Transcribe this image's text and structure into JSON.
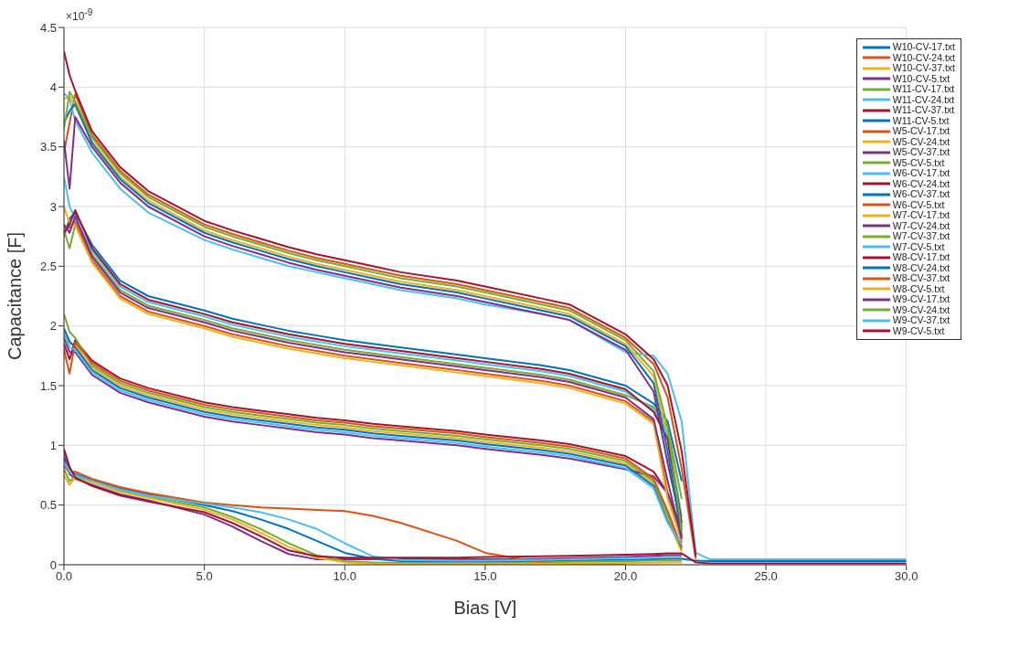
{
  "chart_data": {
    "type": "line",
    "xlabel": "Bias [V]",
    "ylabel": "Capacitance [F]",
    "annotations": [
      "×10$^{-9}$"
    ],
    "x": [
      0,
      0.2,
      0.4,
      1,
      2,
      3,
      5,
      6,
      7,
      8,
      9,
      10,
      11,
      12,
      14,
      15,
      17,
      18,
      20,
      21,
      21.5,
      22,
      22.5,
      23,
      30
    ],
    "xlim": [
      0,
      30
    ],
    "xticks": [
      {
        "value": 0,
        "label": "0.0"
      },
      {
        "value": 5,
        "label": "5.0"
      },
      {
        "value": 10,
        "label": "10.0"
      },
      {
        "value": 15,
        "label": "15.0"
      },
      {
        "value": 20,
        "label": "20.0"
      },
      {
        "value": 25,
        "label": "25.0"
      },
      {
        "value": 30,
        "label": "30.0"
      }
    ],
    "ylim": [
      0,
      4.5
    ],
    "yticks": [
      0,
      0.5,
      1,
      1.5,
      2,
      2.5,
      3,
      3.5,
      4,
      4.5
    ],
    "grid": true,
    "legend": "top right",
    "marker": "none",
    "line_style": "solid",
    "series": [
      {
        "name": "W10-CV-17.txt",
        "color": "#0072bd",
        "values": [
          2.75,
          2.9,
          2.95,
          2.68,
          2.38,
          2.25,
          2.13,
          2.06,
          2.01,
          1.96,
          1.92,
          1.88,
          1.85,
          1.82,
          1.76,
          1.73,
          1.67,
          1.63,
          1.5,
          1.35,
          1.2,
          0.7,
          null,
          null,
          null
        ]
      },
      {
        "name": "W10-CV-24.txt",
        "color": "#d95319",
        "values": [
          3.45,
          3.7,
          3.94,
          3.6,
          3.3,
          3.1,
          2.85,
          2.77,
          2.7,
          2.63,
          2.57,
          2.52,
          2.47,
          2.42,
          2.35,
          2.3,
          2.2,
          2.15,
          1.9,
          1.68,
          1.4,
          0.8,
          0.05,
          null,
          null
        ]
      },
      {
        "name": "W10-CV-37.txt",
        "color": "#edb120",
        "values": [
          1.95,
          1.85,
          1.84,
          1.65,
          1.5,
          1.42,
          1.3,
          1.26,
          1.23,
          1.2,
          1.17,
          1.15,
          1.12,
          1.1,
          1.06,
          1.03,
          0.98,
          0.95,
          0.85,
          0.68,
          0.38,
          0.11,
          null,
          null,
          null
        ]
      },
      {
        "name": "W10-CV-5.txt",
        "color": "#7e2f8e",
        "values": [
          0.9,
          0.76,
          0.72,
          0.67,
          0.59,
          0.54,
          0.42,
          0.32,
          0.2,
          0.09,
          0.045,
          0.045,
          0.045,
          0.045,
          0.045,
          0.045,
          0.05,
          0.055,
          0.065,
          0.075,
          0.08,
          0.08,
          null,
          null,
          null
        ]
      },
      {
        "name": "W11-CV-17.txt",
        "color": "#77ac30",
        "values": [
          2.8,
          2.65,
          2.85,
          2.6,
          2.3,
          2.17,
          2.05,
          1.98,
          1.93,
          1.88,
          1.84,
          1.8,
          1.77,
          1.74,
          1.68,
          1.65,
          1.59,
          1.55,
          1.42,
          1.32,
          1.15,
          0.55,
          null,
          null,
          null
        ]
      },
      {
        "name": "W11-CV-24.txt",
        "color": "#4dbeee",
        "values": [
          3.95,
          3.9,
          3.72,
          3.45,
          3.15,
          2.95,
          2.72,
          2.64,
          2.57,
          2.5,
          2.45,
          2.4,
          2.35,
          2.3,
          2.23,
          2.18,
          2.1,
          2.05,
          1.78,
          1.75,
          1.6,
          1.2,
          0.1,
          0.045,
          0.045
        ]
      },
      {
        "name": "W11-CV-37.txt",
        "color": "#a2142f",
        "values": [
          1.85,
          1.72,
          1.88,
          1.71,
          1.56,
          1.48,
          1.36,
          1.32,
          1.29,
          1.26,
          1.23,
          1.21,
          1.18,
          1.16,
          1.12,
          1.09,
          1.04,
          1.01,
          0.91,
          0.78,
          0.6,
          0.25,
          null,
          null,
          null
        ]
      },
      {
        "name": "W11-CV-5.txt",
        "color": "#0072bd",
        "values": [
          0.95,
          0.8,
          0.76,
          0.71,
          0.64,
          0.59,
          0.5,
          0.45,
          0.38,
          0.3,
          0.2,
          0.1,
          0.05,
          0.03,
          0.025,
          0.025,
          0.03,
          0.035,
          0.04,
          0.045,
          0.05,
          0.05,
          0.035,
          0.03,
          0.03
        ]
      },
      {
        "name": "W5-CV-17.txt",
        "color": "#d95319",
        "values": [
          2.82,
          2.82,
          2.88,
          2.55,
          2.25,
          2.12,
          2.0,
          1.93,
          1.88,
          1.83,
          1.79,
          1.75,
          1.72,
          1.69,
          1.63,
          1.6,
          1.54,
          1.5,
          1.37,
          1.2,
          0.6,
          0.185,
          null,
          null,
          null
        ]
      },
      {
        "name": "W5-CV-24.txt",
        "color": "#edb120",
        "values": [
          3.9,
          3.92,
          3.84,
          3.55,
          3.25,
          3.05,
          2.8,
          2.72,
          2.65,
          2.58,
          2.52,
          2.47,
          2.42,
          2.37,
          2.3,
          2.25,
          2.15,
          2.1,
          1.85,
          1.58,
          1.05,
          0.265,
          null,
          null,
          null
        ]
      },
      {
        "name": "W5-CV-37.txt",
        "color": "#7e2f8e",
        "values": [
          1.9,
          1.78,
          1.78,
          1.59,
          1.44,
          1.36,
          1.24,
          1.2,
          1.17,
          1.14,
          1.11,
          1.09,
          1.06,
          1.04,
          1.0,
          0.97,
          0.92,
          0.89,
          0.8,
          0.74,
          0.6,
          0.3,
          null,
          null,
          null
        ]
      },
      {
        "name": "W5-CV-5.txt",
        "color": "#77ac30",
        "values": [
          0.8,
          0.7,
          0.74,
          0.7,
          0.62,
          0.57,
          0.48,
          0.4,
          0.3,
          0.18,
          0.08,
          0.03,
          0.02,
          0.015,
          0.015,
          0.015,
          0.02,
          0.025,
          0.03,
          0.035,
          0.035,
          0.035,
          null,
          null,
          null
        ]
      },
      {
        "name": "W6-CV-17.txt",
        "color": "#4dbeee",
        "values": [
          3.25,
          3.0,
          2.9,
          2.63,
          2.33,
          2.2,
          2.08,
          2.01,
          1.96,
          1.91,
          1.87,
          1.83,
          1.8,
          1.77,
          1.71,
          1.68,
          1.62,
          1.58,
          1.45,
          1.3,
          1.1,
          0.4,
          null,
          null,
          null
        ]
      },
      {
        "name": "W6-CV-24.txt",
        "color": "#a2142f",
        "values": [
          4.3,
          4.1,
          3.97,
          3.63,
          3.33,
          3.13,
          2.88,
          2.8,
          2.73,
          2.66,
          2.6,
          2.55,
          2.5,
          2.45,
          2.38,
          2.33,
          2.23,
          2.18,
          1.93,
          1.72,
          1.5,
          0.95,
          0.07,
          null,
          null
        ]
      },
      {
        "name": "W6-CV-37.txt",
        "color": "#0072bd",
        "values": [
          1.98,
          1.87,
          1.82,
          1.63,
          1.48,
          1.4,
          1.28,
          1.24,
          1.21,
          1.18,
          1.15,
          1.13,
          1.1,
          1.08,
          1.04,
          1.01,
          0.96,
          0.93,
          0.83,
          0.66,
          0.36,
          0.155,
          null,
          null,
          null
        ]
      },
      {
        "name": "W6-CV-5.txt",
        "color": "#d95319",
        "values": [
          0.83,
          0.77,
          0.78,
          0.72,
          0.65,
          0.6,
          0.52,
          0.5,
          0.48,
          0.47,
          0.46,
          0.45,
          0.41,
          0.35,
          0.2,
          0.1,
          0.02,
          0.01,
          0.01,
          null,
          null,
          null,
          null,
          null,
          null
        ]
      },
      {
        "name": "W7-CV-17.txt",
        "color": "#edb120",
        "values": [
          3.0,
          2.86,
          2.84,
          2.53,
          2.23,
          2.1,
          1.98,
          1.91,
          1.86,
          1.81,
          1.77,
          1.73,
          1.7,
          1.67,
          1.61,
          1.58,
          1.52,
          1.48,
          1.35,
          1.18,
          0.55,
          0.2,
          null,
          null,
          null
        ]
      },
      {
        "name": "W7-CV-24.txt",
        "color": "#7e2f8e",
        "values": [
          3.55,
          3.15,
          3.75,
          3.5,
          3.2,
          3.0,
          2.75,
          2.67,
          2.6,
          2.53,
          2.47,
          2.42,
          2.37,
          2.32,
          2.25,
          2.2,
          2.1,
          2.05,
          1.8,
          1.45,
          0.85,
          0.32,
          null,
          null,
          null
        ]
      },
      {
        "name": "W7-CV-37.txt",
        "color": "#77ac30",
        "values": [
          2.1,
          1.95,
          1.9,
          1.67,
          1.52,
          1.44,
          1.32,
          1.28,
          1.25,
          1.22,
          1.19,
          1.17,
          1.14,
          1.12,
          1.08,
          1.05,
          1.0,
          0.97,
          0.87,
          0.7,
          0.42,
          0.125,
          null,
          null,
          null
        ]
      },
      {
        "name": "W7-CV-5.txt",
        "color": "#4dbeee",
        "values": [
          0.86,
          0.78,
          0.75,
          0.7,
          0.63,
          0.58,
          0.51,
          0.48,
          0.44,
          0.38,
          0.3,
          0.18,
          0.07,
          0.04,
          0.035,
          0.035,
          0.04,
          0.045,
          0.055,
          0.06,
          0.065,
          0.065,
          null,
          null,
          null
        ]
      },
      {
        "name": "W8-CV-17.txt",
        "color": "#a2142f",
        "values": [
          2.78,
          2.85,
          2.97,
          2.65,
          2.35,
          2.22,
          2.1,
          2.03,
          1.98,
          1.93,
          1.89,
          1.85,
          1.82,
          1.79,
          1.73,
          1.7,
          1.64,
          1.6,
          1.47,
          1.28,
          1.05,
          0.35,
          null,
          null,
          null
        ]
      },
      {
        "name": "W8-CV-24.txt",
        "color": "#0072bd",
        "values": [
          3.7,
          3.8,
          3.86,
          3.53,
          3.23,
          3.03,
          2.78,
          2.7,
          2.63,
          2.56,
          2.5,
          2.45,
          2.4,
          2.35,
          2.28,
          2.23,
          2.13,
          2.08,
          1.83,
          1.52,
          0.95,
          0.23,
          null,
          null,
          null
        ]
      },
      {
        "name": "W8-CV-37.txt",
        "color": "#d95319",
        "values": [
          1.8,
          1.6,
          1.86,
          1.69,
          1.54,
          1.46,
          1.34,
          1.3,
          1.27,
          1.24,
          1.21,
          1.19,
          1.16,
          1.14,
          1.1,
          1.07,
          1.02,
          0.99,
          0.89,
          0.72,
          0.45,
          0.14,
          null,
          null,
          null
        ]
      },
      {
        "name": "W8-CV-5.txt",
        "color": "#edb120",
        "values": [
          0.75,
          0.67,
          0.73,
          0.69,
          0.61,
          0.56,
          0.46,
          0.38,
          0.27,
          0.15,
          0.06,
          0.02,
          0.01,
          0.005,
          0.005,
          0.005,
          0.01,
          0.012,
          0.015,
          0.018,
          0.02,
          0.02,
          null,
          null,
          null
        ]
      },
      {
        "name": "W9-CV-17.txt",
        "color": "#7e2f8e",
        "values": [
          2.85,
          2.78,
          2.92,
          2.58,
          2.28,
          2.15,
          2.03,
          1.96,
          1.91,
          1.86,
          1.82,
          1.78,
          1.75,
          1.72,
          1.66,
          1.63,
          1.57,
          1.53,
          1.4,
          1.22,
          0.7,
          0.215,
          null,
          null,
          null
        ]
      },
      {
        "name": "W9-CV-24.txt",
        "color": "#77ac30",
        "values": [
          3.65,
          3.96,
          3.88,
          3.58,
          3.28,
          3.08,
          2.83,
          2.75,
          2.68,
          2.61,
          2.55,
          2.5,
          2.45,
          2.4,
          2.33,
          2.28,
          2.18,
          2.13,
          1.88,
          1.62,
          1.15,
          0.28,
          null,
          null,
          null
        ]
      },
      {
        "name": "W9-CV-37.txt",
        "color": "#4dbeee",
        "values": [
          1.93,
          1.82,
          1.8,
          1.61,
          1.46,
          1.38,
          1.26,
          1.22,
          1.19,
          1.16,
          1.13,
          1.11,
          1.08,
          1.06,
          1.02,
          0.99,
          0.94,
          0.91,
          0.81,
          0.64,
          0.35,
          0.17,
          null,
          null,
          null
        ]
      },
      {
        "name": "W9-CV-5.txt",
        "color": "#a2142f",
        "values": [
          0.97,
          0.82,
          0.73,
          0.66,
          0.58,
          0.53,
          0.44,
          0.35,
          0.24,
          0.12,
          0.07,
          0.06,
          0.06,
          0.06,
          0.06,
          0.065,
          0.07,
          0.075,
          0.085,
          0.09,
          0.095,
          0.095,
          0.02,
          0.012,
          0.012
        ]
      }
    ]
  }
}
